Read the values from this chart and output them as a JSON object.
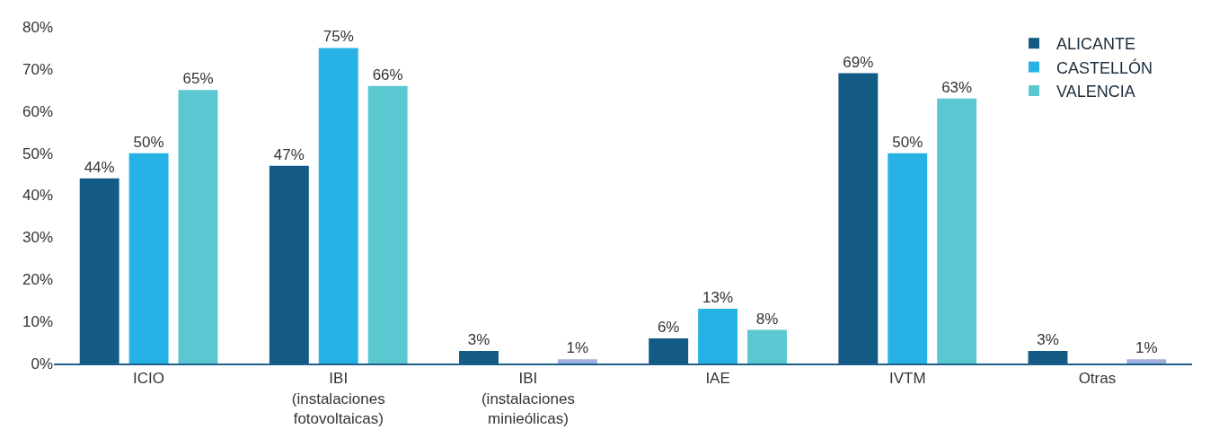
{
  "chart_data": {
    "type": "bar",
    "categories": [
      "ICIO",
      "IBI\n(instalaciones\nfotovoltaicas)",
      "IBI\n(instalaciones\nminieólicas)",
      "IAE",
      "IVTM",
      "Otras"
    ],
    "series": [
      {
        "name": "ALICANTE",
        "color": "#135a85",
        "values": [
          44,
          47,
          3,
          6,
          69,
          3
        ],
        "value_labels": [
          "44%",
          "47%",
          "3%",
          "6%",
          "69%",
          "3%"
        ]
      },
      {
        "name": "CASTELLÓN",
        "color": "#27b2e6",
        "values": [
          50,
          75,
          null,
          13,
          50,
          null
        ],
        "value_labels": [
          "50%",
          "75%",
          null,
          "13%",
          "50%",
          null
        ]
      },
      {
        "name": "VALENCIA",
        "color": "#5bc8d1",
        "colors": [
          null,
          null,
          "#9fb0dc",
          null,
          null,
          "#9fb0dc"
        ],
        "values": [
          65,
          66,
          1,
          8,
          63,
          1
        ],
        "value_labels": [
          "65%",
          "66%",
          "1%",
          "8%",
          "63%",
          "1%"
        ]
      }
    ],
    "ylim": [
      0,
      80
    ],
    "yticks": [
      {
        "value": 0,
        "label": "0%"
      },
      {
        "value": 10,
        "label": "10%"
      },
      {
        "value": 20,
        "label": "20%"
      },
      {
        "value": 30,
        "label": "30%"
      },
      {
        "value": 40,
        "label": "40%"
      },
      {
        "value": 50,
        "label": "50%"
      },
      {
        "value": 60,
        "label": "60%"
      },
      {
        "value": 70,
        "label": "70%"
      },
      {
        "value": 80,
        "label": "80%"
      }
    ],
    "legend": "top right"
  }
}
